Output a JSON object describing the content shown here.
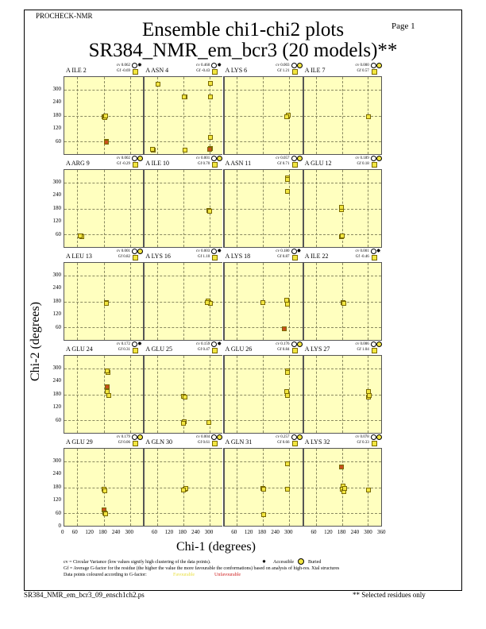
{
  "header": {
    "program": "PROCHECK-NMR",
    "title": "Ensemble chi1-chi2 plots",
    "subtitle": "SR384_NMR_em_bcr3 (20 models)**",
    "page": "Page  1"
  },
  "colors": {
    "favourable": "#f2e640",
    "unfavourable": "#c8501e",
    "panel_bg": "#ffffbf"
  },
  "chart_data": {
    "type": "scatter",
    "xlabel": "Chi-1 (degrees)",
    "ylabel": "Chi-2 (degrees)",
    "xlim": [
      0,
      360
    ],
    "ylim": [
      0,
      360
    ],
    "xticks": [
      "0",
      "60",
      "120",
      "180",
      "240",
      "300",
      "360",
      "60",
      "120",
      "180",
      "240",
      "300",
      "360",
      "60",
      "120",
      "180",
      "240",
      "300",
      "360",
      "60",
      "120",
      "180",
      "240",
      "300",
      "360"
    ],
    "yticks": [
      "0",
      "60",
      "120",
      "180",
      "240",
      "300"
    ],
    "panels": [
      {
        "label": "A ILE 2",
        "cv": "cv 0.062",
        "gf": "Gf -0.69",
        "access": "accessible",
        "points": [
          [
            180,
            180,
            1
          ],
          [
            183,
            175,
            1
          ],
          [
            187,
            182,
            1
          ],
          [
            190,
            65,
            0
          ],
          [
            192,
            63,
            0
          ]
        ]
      },
      {
        "label": "A ASN 4",
        "cv": "cv 0.460",
        "gf": "Gf -0.43",
        "access": "accessible",
        "points": [
          [
            65,
            327,
            1
          ],
          [
            187,
            270,
            1
          ],
          [
            182,
            268,
            1
          ],
          [
            300,
            330,
            1
          ],
          [
            300,
            270,
            1
          ],
          [
            300,
            84,
            1
          ],
          [
            300,
            32,
            0
          ],
          [
            296,
            30,
            0
          ],
          [
            43,
            27,
            1
          ],
          [
            40,
            30,
            1
          ],
          [
            187,
            27,
            1
          ]
        ]
      },
      {
        "label": "A LYS 6",
        "cv": "cv 0.003",
        "gf": "Gf 1.21",
        "access": "buried",
        "points": [
          [
            288,
            180,
            1
          ],
          [
            292,
            184,
            1
          ],
          [
            285,
            177,
            1
          ]
        ]
      },
      {
        "label": "A ILE 7",
        "cv": "cv 0.000",
        "gf": "Gf 0.57",
        "access": "buried",
        "points": [
          [
            295,
            180,
            1
          ],
          [
            297,
            178,
            1
          ]
        ]
      },
      {
        "label": "A ARG 9",
        "cv": "cv 0.002",
        "gf": "Gf -0.29",
        "access": "buried",
        "points": [
          [
            76,
            58,
            1
          ],
          [
            80,
            55,
            1
          ],
          [
            73,
            60,
            1
          ]
        ]
      },
      {
        "label": "A ILE 10",
        "cv": "cv 0.001",
        "gf": "Gf 0.70",
        "access": "buried",
        "points": [
          [
            295,
            175,
            1
          ],
          [
            298,
            172,
            1
          ]
        ]
      },
      {
        "label": "A ASN 11",
        "cv": "cv 0.057",
        "gf": "Gf 0.71",
        "access": "buried",
        "points": [
          [
            288,
            322,
            1
          ],
          [
            290,
            318,
            1
          ],
          [
            288,
            262,
            1
          ]
        ]
      },
      {
        "label": "A GLU 12",
        "cv": "cv 0.189",
        "gf": "Gf 0.18",
        "access": "buried",
        "points": [
          [
            173,
            180,
            1
          ],
          [
            175,
            188,
            1
          ],
          [
            173,
            55,
            1
          ],
          [
            178,
            57,
            1
          ]
        ]
      },
      {
        "label": "A LEU 13",
        "cv": "cv 0.001",
        "gf": "Gf 0.82",
        "access": "buried",
        "points": [
          [
            190,
            180,
            1
          ],
          [
            192,
            176,
            1
          ]
        ]
      },
      {
        "label": "A LYS 16",
        "cv": "cv 0.003",
        "gf": "Gf 1.10",
        "access": "accessible",
        "points": [
          [
            295,
            180,
            1
          ],
          [
            290,
            184,
            1
          ],
          [
            300,
            176,
            1
          ],
          [
            285,
            178,
            1
          ]
        ]
      },
      {
        "label": "A LYS 18",
        "cv": "cv 0.180",
        "gf": "Gf 0.87",
        "access": "accessible",
        "points": [
          [
            176,
            178,
            1
          ],
          [
            288,
            180,
            1
          ],
          [
            290,
            170,
            1
          ],
          [
            286,
            188,
            1
          ],
          [
            274,
            58,
            0
          ]
        ]
      },
      {
        "label": "A ILE 22",
        "cv": "cv 0.001",
        "gf": "Gf -0.46",
        "access": "accessible",
        "points": [
          [
            180,
            178,
            1
          ],
          [
            184,
            176,
            1
          ]
        ]
      },
      {
        "label": "A GLU 24",
        "cv": "cv 0.172",
        "gf": "Gf 0.31",
        "access": "accessible",
        "points": [
          [
            198,
            285,
            1
          ],
          [
            195,
            290,
            1
          ],
          [
            195,
            220,
            0
          ],
          [
            195,
            195,
            1
          ],
          [
            202,
            180,
            1
          ]
        ]
      },
      {
        "label": "A GLU 25",
        "cv": "cv 0.159",
        "gf": "Gf 0.47",
        "access": "accessible",
        "points": [
          [
            180,
            175,
            1
          ],
          [
            186,
            172,
            1
          ],
          [
            183,
            60,
            1
          ],
          [
            180,
            50,
            1
          ],
          [
            295,
            55,
            1
          ]
        ]
      },
      {
        "label": "A GLU 26",
        "cv": "cv 0.176",
        "gf": "Gf 0.84",
        "access": "buried",
        "points": [
          [
            288,
            292,
            1
          ],
          [
            290,
            285,
            1
          ],
          [
            285,
            195,
            1
          ],
          [
            288,
            178,
            1
          ]
        ]
      },
      {
        "label": "A LYS 27",
        "cv": "cv 0.006",
        "gf": "Gf 1.04",
        "access": "buried",
        "points": [
          [
            295,
            170,
            1
          ],
          [
            298,
            180,
            1
          ],
          [
            296,
            195,
            1
          ]
        ]
      },
      {
        "label": "A GLU 29",
        "cv": "cv 0.179",
        "gf": "Gf 0.06",
        "access": "buried",
        "points": [
          [
            180,
            175,
            1
          ],
          [
            183,
            168,
            1
          ],
          [
            180,
            80,
            0
          ],
          [
            182,
            65,
            1
          ],
          [
            186,
            62,
            1
          ]
        ]
      },
      {
        "label": "A GLN 30",
        "cv": "cv 0.004",
        "gf": "Gf 0.61",
        "access": "buried",
        "points": [
          [
            185,
            175,
            1
          ],
          [
            190,
            180,
            1
          ],
          [
            178,
            170,
            1
          ]
        ]
      },
      {
        "label": "A GLN 31",
        "cv": "cv 0.257",
        "gf": "Gf 0.66",
        "access": "buried",
        "points": [
          [
            176,
            178,
            1
          ],
          [
            180,
            175,
            1
          ],
          [
            180,
            60,
            1
          ],
          [
            290,
            290,
            1
          ],
          [
            288,
            175,
            1
          ]
        ]
      },
      {
        "label": "A LYS 32",
        "cv": "cv 0.078",
        "gf": "Gf 0.33",
        "access": "buried",
        "points": [
          [
            173,
            275,
            0
          ],
          [
            180,
            190,
            1
          ],
          [
            176,
            175,
            1
          ],
          [
            183,
            165,
            1
          ],
          [
            188,
            180,
            1
          ],
          [
            295,
            170,
            1
          ]
        ]
      }
    ]
  },
  "legend": {
    "cv_line": "cv = Circular Variance (low values signify high clustering of the data points).",
    "accessible": "Accessible",
    "buried": "Buried",
    "gf_line": "Gf = Average G-factor for the residue (the higher the value the more favourable the conformations) based on analysis of high-res. Xtal structures",
    "colour_line": "Data points coloured according to G-factor:",
    "favourable": "Favourable",
    "unfavourable": "Unfavourable"
  },
  "footer": {
    "filename": "SR384_NMR_em_bcr3_09_ensch1ch2.ps",
    "note": "** Selected residues only"
  }
}
